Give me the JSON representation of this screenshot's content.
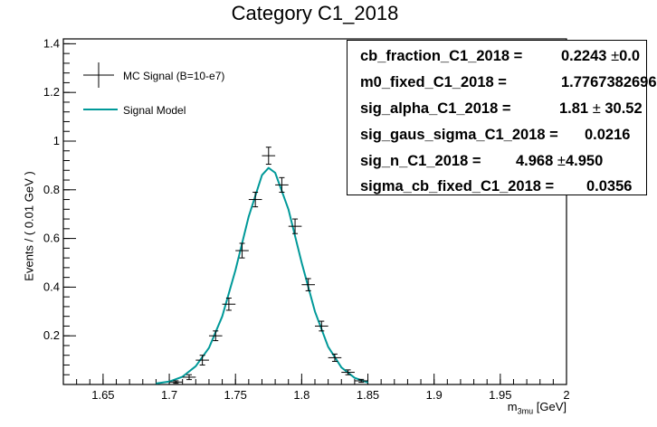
{
  "chart_data": {
    "type": "scatter",
    "title": "Category C1_2018",
    "xlabel": "m",
    "xlabel_sub": "3mu",
    "xlabel_unit": "[GeV]",
    "ylabel": "Events / ( 0.01 GeV )",
    "xlim": [
      1.62,
      2.0
    ],
    "ylim": [
      0,
      1.42
    ],
    "xticks": [
      "1.65",
      "1.7",
      "1.75",
      "1.8",
      "1.85",
      "1.9",
      "1.95",
      "2"
    ],
    "yticks": [
      "0.2",
      "0.4",
      "0.6",
      "0.8",
      "1",
      "1.2",
      "1.4"
    ],
    "legend_placement": "top-left",
    "series": [
      {
        "name": "MC Signal (B=10-e7)",
        "kind": "points-with-errors",
        "color": "#000000",
        "x": [
          1.705,
          1.715,
          1.725,
          1.735,
          1.745,
          1.755,
          1.765,
          1.775,
          1.785,
          1.795,
          1.805,
          1.815,
          1.825,
          1.835,
          1.845
        ],
        "y": [
          0.01,
          0.03,
          0.1,
          0.2,
          0.33,
          0.55,
          0.76,
          0.94,
          0.82,
          0.65,
          0.41,
          0.24,
          0.11,
          0.05,
          0.015
        ],
        "yerr": [
          0.005,
          0.01,
          0.02,
          0.02,
          0.025,
          0.03,
          0.03,
          0.035,
          0.03,
          0.03,
          0.025,
          0.02,
          0.015,
          0.01,
          0.006
        ],
        "xerr": 0.005
      },
      {
        "name": "Signal Model",
        "kind": "curve",
        "color": "#009999",
        "x": [
          1.69,
          1.7,
          1.71,
          1.72,
          1.73,
          1.74,
          1.75,
          1.76,
          1.77,
          1.775,
          1.78,
          1.79,
          1.8,
          1.81,
          1.82,
          1.83,
          1.84,
          1.85
        ],
        "y": [
          0.004,
          0.012,
          0.032,
          0.075,
          0.15,
          0.28,
          0.47,
          0.69,
          0.86,
          0.89,
          0.87,
          0.72,
          0.5,
          0.3,
          0.155,
          0.07,
          0.027,
          0.008
        ]
      }
    ]
  },
  "stats_box": {
    "rows": [
      {
        "name": "cb_fraction_C1_2018 =",
        "value": "0.2243",
        "pm": "±",
        "err": "0.0"
      },
      {
        "name": "m0_fixed_C1_2018 =",
        "value": "1.7767382696",
        "pm": "",
        "err": ""
      },
      {
        "name": "sig_alpha_C1_2018 =",
        "value": "1.81",
        "pm": "±",
        "err": "30.52"
      },
      {
        "name": "sig_gaus_sigma_C1_2018 =",
        "value": "0.0216",
        "pm": "",
        "err": ""
      },
      {
        "name": "sig_n_C1_2018 =",
        "value": "4.968",
        "pm": "±",
        "err": "4.950"
      },
      {
        "name": "sigma_cb_fixed_C1_2018 =",
        "value": "0.0356",
        "pm": "",
        "err": ""
      }
    ]
  }
}
